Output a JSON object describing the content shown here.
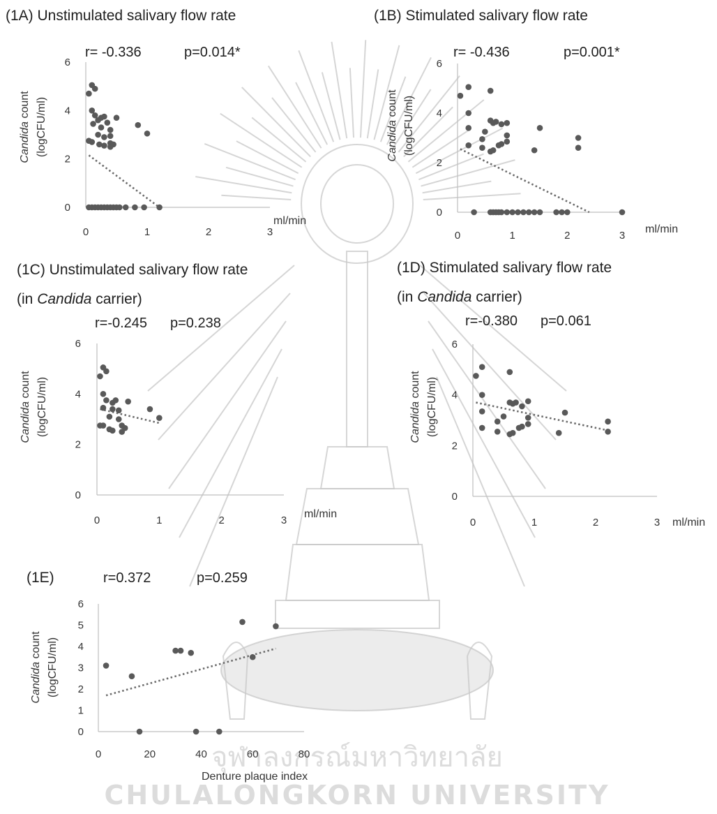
{
  "watermark": {
    "line1": "จุฬาลงกรณ์มหาวิทยาลัย",
    "line2": "Chulalongkorn University"
  },
  "chart_data": [
    {
      "id": "1A",
      "type": "scatter",
      "title": "(1A) Unstimulated salivary flow rate",
      "subtitle_prefix": "",
      "subtitle_italic": "",
      "subtitle_suffix": "",
      "r": "r= -0.336",
      "p": "p=0.014*",
      "ylabel_italic": "Candida",
      "ylabel_rest": " count",
      "ylabel2": "(logCFU/ml)",
      "xlabel": "ml/min",
      "xlim": [
        0,
        3
      ],
      "ylim": [
        0,
        6
      ],
      "xticks": [
        "0",
        "1",
        "2",
        "3"
      ],
      "yticks": [
        "0",
        "2",
        "4",
        "6"
      ],
      "points": [
        [
          0.05,
          4.7
        ],
        [
          0.1,
          5.05
        ],
        [
          0.15,
          4.9
        ],
        [
          0.1,
          4.0
        ],
        [
          0.15,
          3.8
        ],
        [
          0.25,
          3.7
        ],
        [
          0.3,
          3.75
        ],
        [
          0.2,
          3.6
        ],
        [
          0.35,
          3.5
        ],
        [
          0.12,
          3.45
        ],
        [
          0.25,
          3.3
        ],
        [
          0.4,
          3.2
        ],
        [
          0.5,
          3.7
        ],
        [
          0.85,
          3.4
        ],
        [
          1.0,
          3.05
        ],
        [
          0.2,
          3.0
        ],
        [
          0.3,
          2.9
        ],
        [
          0.4,
          2.95
        ],
        [
          0.05,
          2.75
        ],
        [
          0.1,
          2.7
        ],
        [
          0.22,
          2.6
        ],
        [
          0.3,
          2.55
        ],
        [
          0.4,
          2.65
        ],
        [
          0.45,
          2.6
        ],
        [
          0.4,
          2.5
        ],
        [
          0.05,
          0
        ],
        [
          0.1,
          0
        ],
        [
          0.15,
          0
        ],
        [
          0.2,
          0
        ],
        [
          0.25,
          0
        ],
        [
          0.3,
          0
        ],
        [
          0.35,
          0
        ],
        [
          0.4,
          0
        ],
        [
          0.45,
          0
        ],
        [
          0.5,
          0
        ],
        [
          0.55,
          0
        ],
        [
          0.65,
          0
        ],
        [
          0.8,
          0
        ],
        [
          0.95,
          0
        ],
        [
          1.2,
          0
        ]
      ],
      "trend": [
        [
          0.05,
          2.15
        ],
        [
          1.2,
          0.0
        ]
      ]
    },
    {
      "id": "1B",
      "type": "scatter",
      "title": "(1B) Stimulated salivary flow rate",
      "subtitle_prefix": "",
      "subtitle_italic": "",
      "subtitle_suffix": "",
      "r": "r= -0.436",
      "p": "p=0.001*",
      "ylabel_italic": "Candida",
      "ylabel_rest": " count",
      "ylabel2": "(logCFU/ml)",
      "xlabel": "ml/min",
      "xlim": [
        0,
        3
      ],
      "ylim": [
        0,
        6
      ],
      "xticks": [
        "0",
        "1",
        "2",
        "3"
      ],
      "yticks": [
        "0",
        "2",
        "4",
        "6"
      ],
      "points": [
        [
          0.05,
          4.7
        ],
        [
          0.2,
          5.05
        ],
        [
          0.2,
          4.0
        ],
        [
          0.6,
          4.9
        ],
        [
          0.2,
          3.4
        ],
        [
          0.5,
          3.25
        ],
        [
          0.6,
          3.7
        ],
        [
          0.65,
          3.6
        ],
        [
          0.7,
          3.65
        ],
        [
          0.8,
          3.55
        ],
        [
          0.9,
          3.6
        ],
        [
          1.5,
          3.4
        ],
        [
          0.45,
          2.95
        ],
        [
          0.9,
          3.1
        ],
        [
          0.9,
          2.85
        ],
        [
          0.75,
          2.7
        ],
        [
          0.8,
          2.75
        ],
        [
          0.2,
          2.7
        ],
        [
          0.45,
          2.6
        ],
        [
          0.6,
          2.45
        ],
        [
          0.65,
          2.5
        ],
        [
          1.4,
          2.5
        ],
        [
          2.2,
          3.0
        ],
        [
          2.2,
          2.6
        ],
        [
          0.3,
          0
        ],
        [
          0.6,
          0
        ],
        [
          0.65,
          0
        ],
        [
          0.7,
          0
        ],
        [
          0.75,
          0
        ],
        [
          0.8,
          0
        ],
        [
          0.9,
          0
        ],
        [
          1.0,
          0
        ],
        [
          1.1,
          0
        ],
        [
          1.2,
          0
        ],
        [
          1.3,
          0
        ],
        [
          1.4,
          0
        ],
        [
          1.5,
          0
        ],
        [
          1.8,
          0
        ],
        [
          1.9,
          0
        ],
        [
          2.0,
          0
        ],
        [
          3.0,
          0
        ]
      ],
      "trend": [
        [
          0.05,
          2.55
        ],
        [
          2.4,
          0.0
        ]
      ]
    },
    {
      "id": "1C",
      "type": "scatter",
      "title": "(1C) Unstimulated salivary flow rate",
      "subtitle_prefix": "(in ",
      "subtitle_italic": "Candida",
      "subtitle_suffix": " carrier)",
      "r": "r=-0.245",
      "p": "p=0.238",
      "ylabel_italic": "Candida",
      "ylabel_rest": " count",
      "ylabel2": "(logCFU/ml)",
      "xlabel": "ml/min",
      "xlim": [
        0,
        3
      ],
      "ylim": [
        0,
        6
      ],
      "xticks": [
        "0",
        "1",
        "2",
        "3"
      ],
      "yticks": [
        "0",
        "2",
        "4",
        "6"
      ],
      "points": [
        [
          0.05,
          4.7
        ],
        [
          0.1,
          5.05
        ],
        [
          0.15,
          4.9
        ],
        [
          0.1,
          4.0
        ],
        [
          0.15,
          3.75
        ],
        [
          0.25,
          3.65
        ],
        [
          0.3,
          3.75
        ],
        [
          0.5,
          3.7
        ],
        [
          0.1,
          3.45
        ],
        [
          0.25,
          3.4
        ],
        [
          0.35,
          3.35
        ],
        [
          0.85,
          3.4
        ],
        [
          1.0,
          3.05
        ],
        [
          0.2,
          3.1
        ],
        [
          0.35,
          3.0
        ],
        [
          0.05,
          2.75
        ],
        [
          0.1,
          2.75
        ],
        [
          0.2,
          2.6
        ],
        [
          0.25,
          2.55
        ],
        [
          0.4,
          2.75
        ],
        [
          0.45,
          2.65
        ],
        [
          0.4,
          2.5
        ]
      ],
      "trend": [
        [
          0.05,
          3.4
        ],
        [
          1.0,
          2.85
        ]
      ]
    },
    {
      "id": "1D",
      "type": "scatter",
      "title": "(1D) Stimulated salivary flow rate",
      "subtitle_prefix": "(in ",
      "subtitle_italic": "Candida",
      "subtitle_suffix": " carrier)",
      "r": "r=-0.380",
      "p": "p=0.061",
      "ylabel_italic": "Candida",
      "ylabel_rest": " count",
      "ylabel2": "(logCFU/ml)",
      "xlabel": "ml/min",
      "xlim": [
        0,
        3
      ],
      "ylim": [
        0,
        6
      ],
      "xticks": [
        "0",
        "1",
        "2",
        "3"
      ],
      "yticks": [
        "0",
        "2",
        "4",
        "6"
      ],
      "points": [
        [
          0.05,
          4.75
        ],
        [
          0.15,
          5.1
        ],
        [
          0.15,
          4.0
        ],
        [
          0.6,
          4.9
        ],
        [
          0.15,
          3.35
        ],
        [
          0.5,
          3.15
        ],
        [
          0.6,
          3.7
        ],
        [
          0.65,
          3.65
        ],
        [
          0.7,
          3.7
        ],
        [
          0.8,
          3.55
        ],
        [
          0.9,
          3.75
        ],
        [
          1.5,
          3.3
        ],
        [
          0.4,
          2.95
        ],
        [
          0.9,
          3.1
        ],
        [
          0.9,
          2.85
        ],
        [
          0.75,
          2.7
        ],
        [
          0.8,
          2.75
        ],
        [
          0.15,
          2.7
        ],
        [
          0.4,
          2.55
        ],
        [
          0.6,
          2.45
        ],
        [
          0.65,
          2.5
        ],
        [
          1.4,
          2.5
        ],
        [
          2.2,
          2.95
        ],
        [
          2.2,
          2.55
        ]
      ],
      "trend": [
        [
          0.05,
          3.7
        ],
        [
          2.2,
          2.6
        ]
      ]
    },
    {
      "id": "1E",
      "type": "scatter",
      "title": "(1E)",
      "subtitle_prefix": "",
      "subtitle_italic": "",
      "subtitle_suffix": "",
      "r": "r=0.372",
      "p": "p=0.259",
      "ylabel_italic": "Candida",
      "ylabel_rest": " count",
      "ylabel2": "(logCFU/ml)",
      "xlabel": "Denture plaque index",
      "xlim": [
        0,
        80
      ],
      "ylim": [
        0,
        6
      ],
      "xticks": [
        "0",
        "20",
        "40",
        "60",
        "80"
      ],
      "yticks": [
        "0",
        "1",
        "2",
        "3",
        "4",
        "5",
        "6"
      ],
      "points": [
        [
          3,
          3.1
        ],
        [
          13,
          2.6
        ],
        [
          16,
          0
        ],
        [
          30,
          3.8
        ],
        [
          32,
          3.8
        ],
        [
          36,
          3.7
        ],
        [
          38,
          0
        ],
        [
          47,
          0
        ],
        [
          56,
          5.15
        ],
        [
          60,
          3.5
        ],
        [
          69,
          4.95
        ]
      ],
      "trend": [
        [
          3,
          1.7
        ],
        [
          69,
          3.9
        ]
      ]
    }
  ]
}
